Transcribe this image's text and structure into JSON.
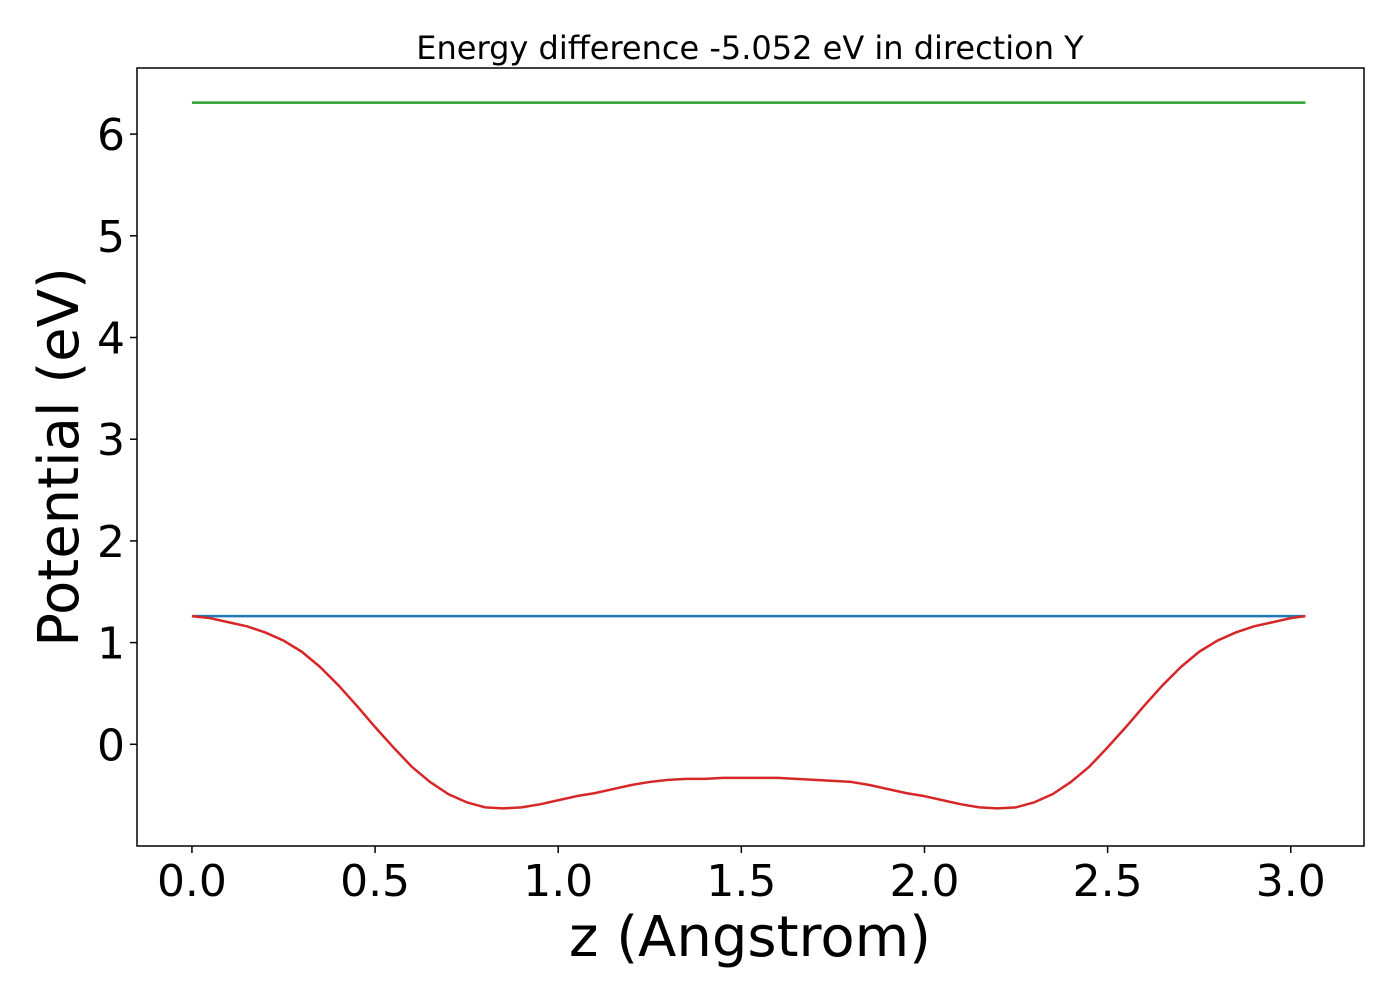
{
  "chart_data": {
    "type": "line",
    "title": "Energy difference -5.052 eV in direction Y",
    "xlabel": "z (Angstrom)",
    "ylabel": "Potential (eV)",
    "xlim": [
      -0.15,
      3.2
    ],
    "ylim": [
      -1.0,
      6.65
    ],
    "xticks": [
      {
        "value": 0.0,
        "label": "0.0"
      },
      {
        "value": 0.5,
        "label": "0.5"
      },
      {
        "value": 1.0,
        "label": "1.0"
      },
      {
        "value": 1.5,
        "label": "1.5"
      },
      {
        "value": 2.0,
        "label": "2.0"
      },
      {
        "value": 2.5,
        "label": "2.5"
      },
      {
        "value": 3.0,
        "label": "3.0"
      }
    ],
    "yticks": [
      {
        "value": 0,
        "label": "0"
      },
      {
        "value": 1,
        "label": "1"
      },
      {
        "value": 2,
        "label": "2"
      },
      {
        "value": 3,
        "label": "3"
      },
      {
        "value": 4,
        "label": "4"
      },
      {
        "value": 5,
        "label": "5"
      },
      {
        "value": 6,
        "label": "6"
      }
    ],
    "grid": false,
    "series": [
      {
        "color": "#2ca02c",
        "x": [
          0.0,
          3.04
        ],
        "y": [
          6.31,
          6.31
        ]
      },
      {
        "color": "#1f77b4",
        "x": [
          0.0,
          3.04
        ],
        "y": [
          1.26,
          1.26
        ]
      },
      {
        "color": "#d62728",
        "x": [
          0.0,
          0.05,
          0.1,
          0.15,
          0.2,
          0.25,
          0.3,
          0.35,
          0.4,
          0.45,
          0.5,
          0.55,
          0.6,
          0.65,
          0.7,
          0.75,
          0.8,
          0.85,
          0.9,
          0.95,
          1.0,
          1.05,
          1.1,
          1.15,
          1.2,
          1.25,
          1.3,
          1.35,
          1.4,
          1.45,
          1.5,
          1.55,
          1.6,
          1.65,
          1.7,
          1.75,
          1.8,
          1.85,
          1.9,
          1.95,
          2.0,
          2.05,
          2.1,
          2.15,
          2.2,
          2.25,
          2.3,
          2.35,
          2.4,
          2.45,
          2.5,
          2.55,
          2.6,
          2.65,
          2.7,
          2.75,
          2.8,
          2.85,
          2.9,
          2.95,
          3.0,
          3.04
        ],
        "y": [
          1.26,
          1.24,
          1.2,
          1.16,
          1.1,
          1.02,
          0.91,
          0.76,
          0.58,
          0.38,
          0.17,
          -0.03,
          -0.22,
          -0.37,
          -0.49,
          -0.57,
          -0.62,
          -0.63,
          -0.62,
          -0.59,
          -0.55,
          -0.51,
          -0.48,
          -0.44,
          -0.4,
          -0.37,
          -0.35,
          -0.34,
          -0.34,
          -0.33,
          -0.33,
          -0.33,
          -0.33,
          -0.34,
          -0.35,
          -0.36,
          -0.37,
          -0.4,
          -0.44,
          -0.48,
          -0.51,
          -0.55,
          -0.59,
          -0.62,
          -0.63,
          -0.62,
          -0.57,
          -0.49,
          -0.37,
          -0.22,
          -0.03,
          0.17,
          0.38,
          0.58,
          0.76,
          0.91,
          1.02,
          1.1,
          1.16,
          1.2,
          1.24,
          1.26
        ]
      }
    ]
  }
}
